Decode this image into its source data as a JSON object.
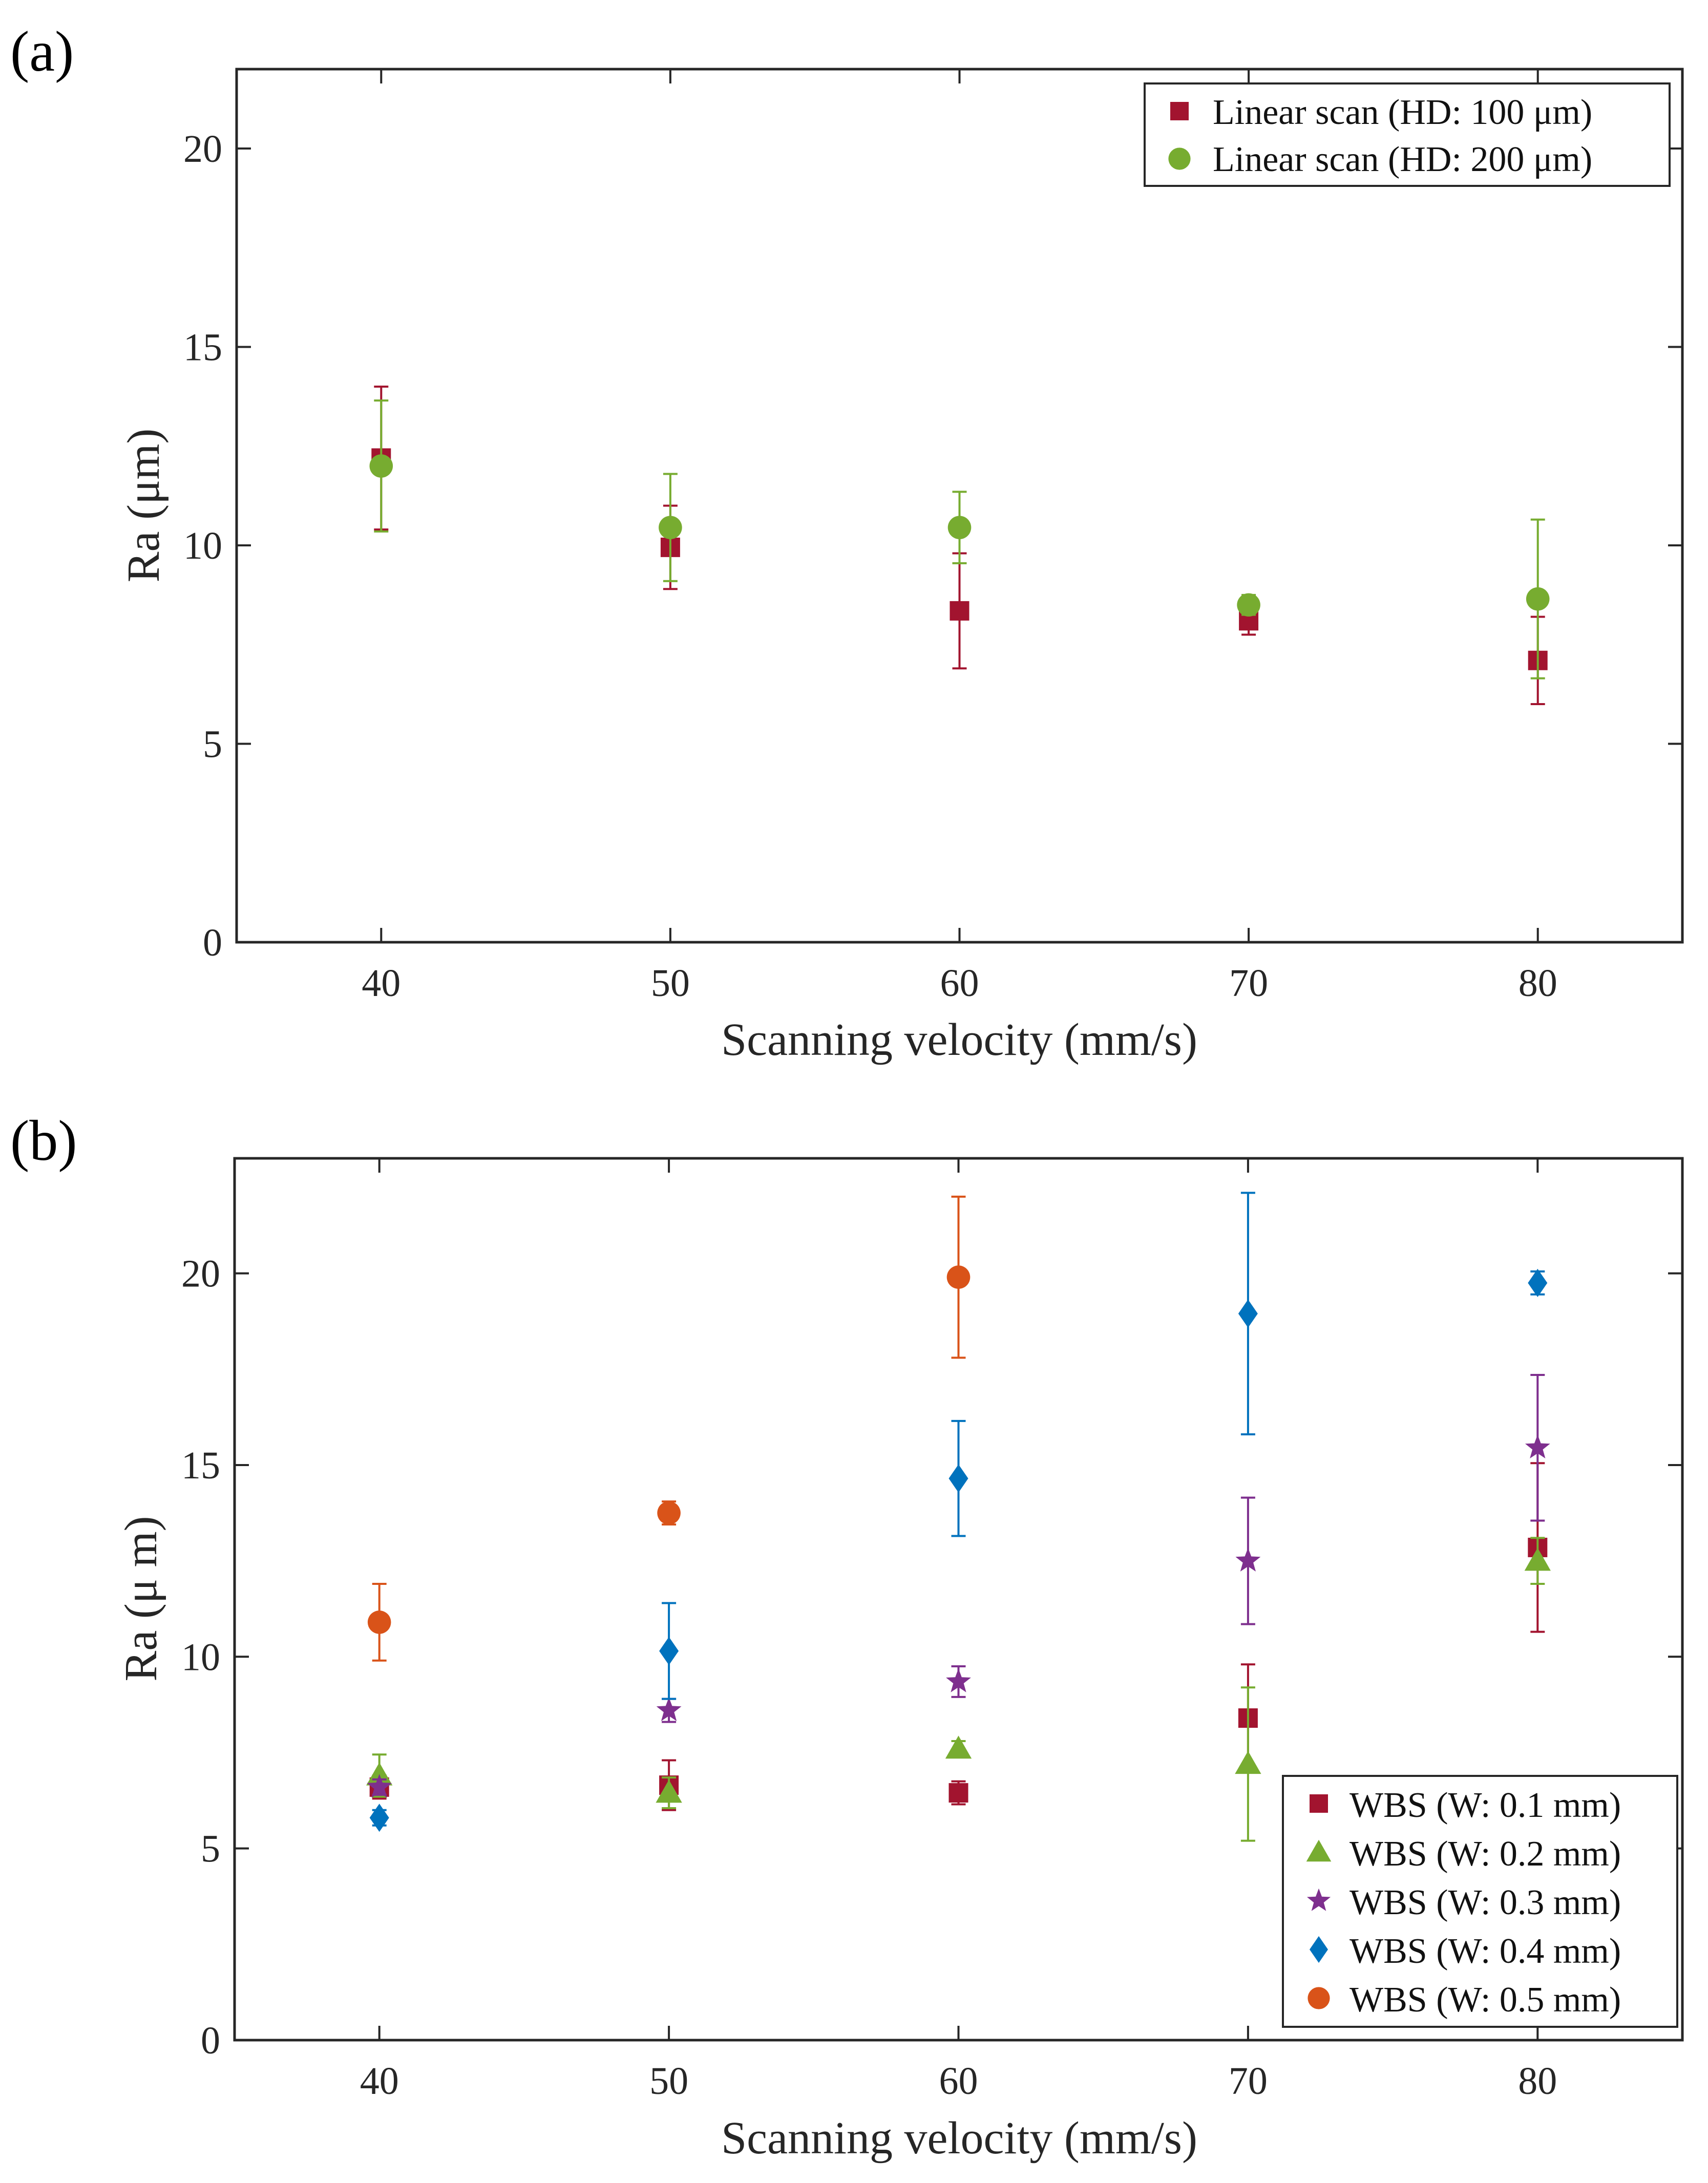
{
  "chart_data": [
    {
      "panel_label": "(a)",
      "type": "scatter",
      "xlabel": "Scanning velocity (mm/s)",
      "ylabel": "Ra (μm)",
      "xlim": [
        35,
        85
      ],
      "ylim": [
        0,
        22
      ],
      "xticks": [
        "40",
        "50",
        "60",
        "70",
        "80"
      ],
      "yticks": [
        "0",
        "5",
        "10",
        "15",
        "20"
      ],
      "legend_position": "top-right",
      "grid": false,
      "series": [
        {
          "name": "Linear scan (HD: 100 μm)",
          "marker": "square",
          "color": "#A2142F",
          "x": [
            40,
            50,
            60,
            70,
            80
          ],
          "y": [
            12.2,
            9.95,
            8.35,
            8.1,
            7.1
          ],
          "error": [
            1.8,
            1.05,
            1.45,
            0.35,
            1.1
          ]
        },
        {
          "name": "Linear scan (HD: 200 μm)",
          "marker": "circle",
          "color": "#77AC30",
          "x": [
            40,
            50,
            60,
            70,
            80
          ],
          "y": [
            12.0,
            10.45,
            10.45,
            8.5,
            8.65
          ],
          "error": [
            1.65,
            1.35,
            0.9,
            0.25,
            2.0
          ]
        }
      ]
    },
    {
      "panel_label": "(b)",
      "type": "scatter",
      "xlabel": "Scanning velocity (mm/s)",
      "ylabel": "Ra (μ m)",
      "xlim": [
        35,
        85
      ],
      "ylim": [
        0,
        23
      ],
      "xticks": [
        "40",
        "50",
        "60",
        "70",
        "80"
      ],
      "yticks": [
        "0",
        "5",
        "10",
        "15",
        "20"
      ],
      "legend_position": "bottom-right",
      "grid": false,
      "series": [
        {
          "name": "WBS (W: 0.1 mm)",
          "marker": "square",
          "color": "#A2142F",
          "x": [
            40,
            50,
            60,
            70,
            80
          ],
          "y": [
            6.6,
            6.65,
            6.45,
            8.4,
            12.85
          ],
          "error": [
            0.3,
            0.65,
            0.3,
            1.4,
            2.2
          ]
        },
        {
          "name": "WBS (W: 0.2 mm)",
          "marker": "triangle",
          "color": "#77AC30",
          "x": [
            40,
            50,
            60,
            70,
            80
          ],
          "y": [
            6.9,
            6.45,
            7.6,
            7.2,
            12.5
          ],
          "error": [
            0.55,
            0.4,
            0.2,
            2.0,
            0.6
          ]
        },
        {
          "name": "WBS (W: 0.3 mm)",
          "marker": "star",
          "color": "#7E2F8E",
          "x": [
            40,
            50,
            60,
            70,
            80
          ],
          "y": [
            6.6,
            8.6,
            9.35,
            12.5,
            15.45
          ],
          "error": [
            0.2,
            0.3,
            0.4,
            1.65,
            1.9
          ]
        },
        {
          "name": "WBS (W: 0.4 mm)",
          "marker": "diamond",
          "color": "#0072BD",
          "x": [
            40,
            50,
            60,
            70,
            80
          ],
          "y": [
            5.8,
            10.15,
            14.65,
            18.95,
            19.75
          ],
          "error": [
            0.2,
            1.25,
            1.5,
            3.15,
            0.3
          ]
        },
        {
          "name": "WBS (W: 0.5 mm)",
          "marker": "circle",
          "color": "#D95319",
          "x": [
            40,
            50,
            60
          ],
          "y": [
            10.9,
            13.75,
            19.9
          ],
          "error": [
            1.0,
            0.3,
            2.1
          ]
        }
      ]
    }
  ]
}
